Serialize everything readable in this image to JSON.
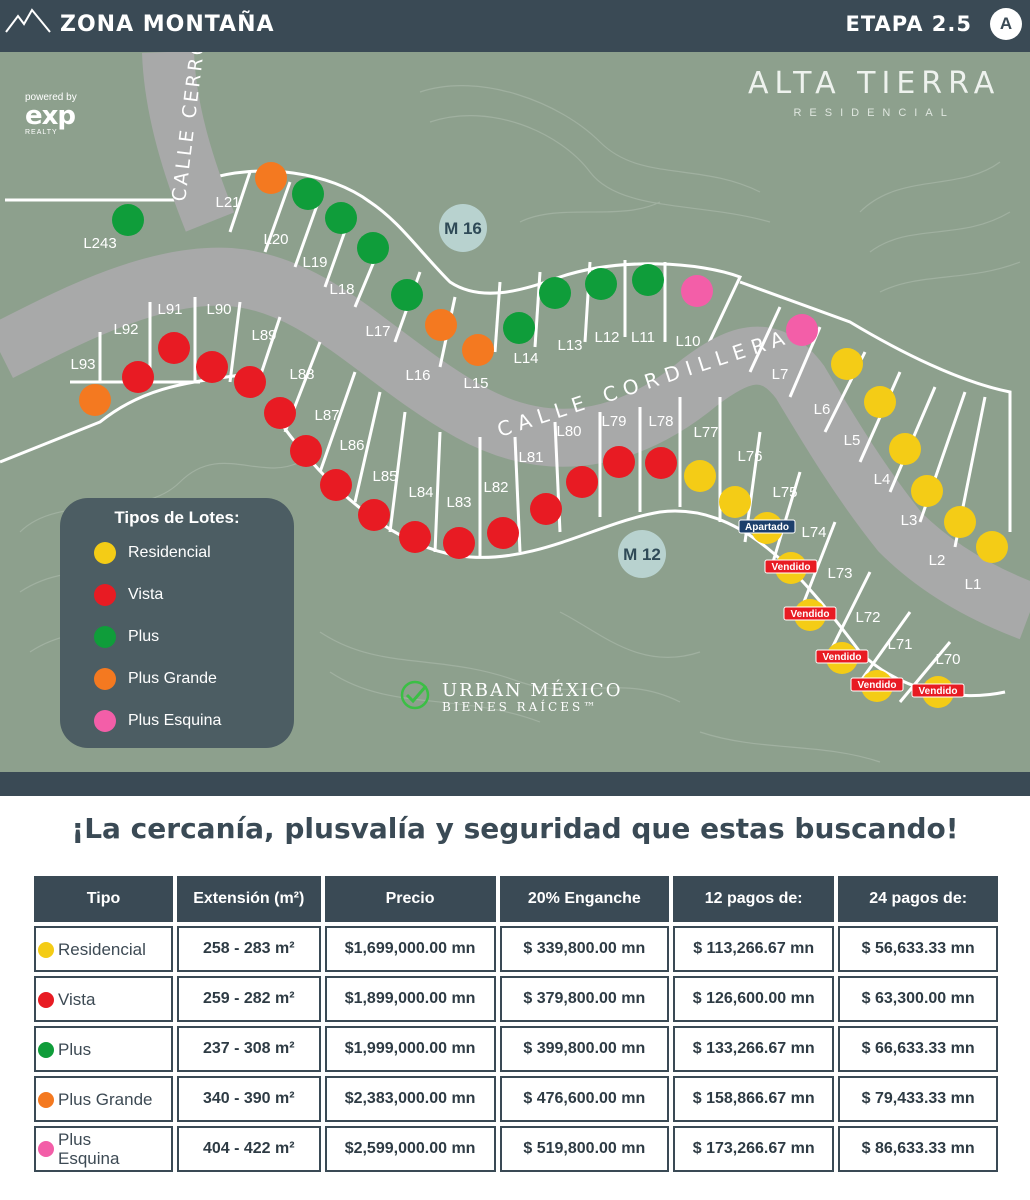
{
  "header": {
    "zone": "ZONA MONTAÑA",
    "stage": "ETAPA 2.5",
    "badge": "A"
  },
  "brand": {
    "powered": "powered by",
    "exp": "exp",
    "realty": "REALTY",
    "name": "ALTA TIERRA",
    "sub": "RESIDENCIAL"
  },
  "colors": {
    "Residencial": "#f4cc16",
    "Vista": "#e81b23",
    "Plus": "#0f9d3a",
    "PlusGrande": "#f47920",
    "PlusEsquina": "#f35ea8",
    "dark": "#3a4a55",
    "map": "#8da08d",
    "road": "#a8a9a9"
  },
  "streets": {
    "cerro": "CALLE CERRO",
    "cordillera": "CALLE CORDILLERA"
  },
  "blocks": [
    "M 16",
    "M 12"
  ],
  "lots": [
    {
      "id": "L243",
      "type": "Plus"
    },
    {
      "id": "L21",
      "type": "PlusGrande"
    },
    {
      "id": "L20",
      "type": "Plus"
    },
    {
      "id": "L19",
      "type": "Plus"
    },
    {
      "id": "L18",
      "type": "Plus"
    },
    {
      "id": "L17",
      "type": "Plus"
    },
    {
      "id": "L16",
      "type": "PlusGrande"
    },
    {
      "id": "L15",
      "type": "PlusGrande"
    },
    {
      "id": "L14",
      "type": "Plus"
    },
    {
      "id": "L13",
      "type": "Plus"
    },
    {
      "id": "L12",
      "type": "Plus"
    },
    {
      "id": "L11",
      "type": "Plus"
    },
    {
      "id": "L10",
      "type": "PlusEsquina"
    },
    {
      "id": "L7",
      "type": "PlusEsquina"
    },
    {
      "id": "L6",
      "type": "Residencial"
    },
    {
      "id": "L5",
      "type": "Residencial"
    },
    {
      "id": "L4",
      "type": "Residencial"
    },
    {
      "id": "L3",
      "type": "Residencial"
    },
    {
      "id": "L2",
      "type": "Residencial"
    },
    {
      "id": "L1",
      "type": "Residencial"
    },
    {
      "id": "L93",
      "type": "PlusGrande"
    },
    {
      "id": "L92",
      "type": "Vista"
    },
    {
      "id": "L91",
      "type": "Vista"
    },
    {
      "id": "L90",
      "type": "Vista"
    },
    {
      "id": "L89",
      "type": "Vista"
    },
    {
      "id": "L88",
      "type": "Vista"
    },
    {
      "id": "L87",
      "type": "Vista"
    },
    {
      "id": "L86",
      "type": "Vista"
    },
    {
      "id": "L85",
      "type": "Vista"
    },
    {
      "id": "L84",
      "type": "Vista"
    },
    {
      "id": "L83",
      "type": "Vista"
    },
    {
      "id": "L82",
      "type": "Vista"
    },
    {
      "id": "L81",
      "type": "Vista"
    },
    {
      "id": "L80",
      "type": "Vista"
    },
    {
      "id": "L79",
      "type": "Vista"
    },
    {
      "id": "L78",
      "type": "Vista"
    },
    {
      "id": "L77",
      "type": "Residencial"
    },
    {
      "id": "L76",
      "type": "Residencial"
    },
    {
      "id": "L75",
      "type": "Residencial",
      "status": "Apartado"
    },
    {
      "id": "L74",
      "type": "Residencial",
      "status": "Vendido"
    },
    {
      "id": "L73",
      "type": "Residencial",
      "status": "Vendido"
    },
    {
      "id": "L72",
      "type": "Residencial",
      "status": "Vendido"
    },
    {
      "id": "L71",
      "type": "Residencial",
      "status": "Vendido"
    },
    {
      "id": "L70",
      "type": "Residencial",
      "status": "Vendido"
    }
  ],
  "legend": {
    "title": "Tipos de Lotes:",
    "items": [
      {
        "label": "Residencial",
        "color": "#f4cc16"
      },
      {
        "label": "Vista",
        "color": "#e81b23"
      },
      {
        "label": "Plus",
        "color": "#0f9d3a"
      },
      {
        "label": "Plus  Grande",
        "color": "#f47920"
      },
      {
        "label": "Plus Esquina",
        "color": "#f35ea8"
      }
    ]
  },
  "urban": {
    "name": "URBAN MÉXICO",
    "sub": "BIENES RAÍCES™"
  },
  "tagline": "¡La cercanía, plusvalía y seguridad que estas buscando!",
  "table": {
    "headers": [
      "Tipo",
      "Extensión (m²)",
      "Precio",
      "20% Enganche",
      "12 pagos de:",
      "24 pagos de:"
    ],
    "rows": [
      {
        "type": "Residencial",
        "color": "#f4cc16",
        "ext": "258 - 283 m²",
        "price": "$1,699,000.00 mn",
        "down": "$ 339,800.00 mn",
        "p12": "$ 113,266.67 mn",
        "p24": "$ 56,633.33 mn"
      },
      {
        "type": "Vista",
        "color": "#e81b23",
        "ext": "259 - 282 m²",
        "price": "$1,899,000.00 mn",
        "down": "$ 379,800.00 mn",
        "p12": "$ 126,600.00 mn",
        "p24": "$ 63,300.00 mn"
      },
      {
        "type": "Plus",
        "color": "#0f9d3a",
        "ext": "237 - 308 m²",
        "price": "$1,999,000.00 mn",
        "down": "$ 399,800.00 mn",
        "p12": "$ 133,266.67 mn",
        "p24": "$ 66,633.33 mn"
      },
      {
        "type": "Plus Grande",
        "color": "#f47920",
        "ext": "340 - 390 m²",
        "price": "$2,383,000.00 mn",
        "down": "$ 476,600.00 mn",
        "p12": "$ 158,866.67 mn",
        "p24": "$ 79,433.33 mn"
      },
      {
        "type": "Plus Esquina",
        "color": "#f35ea8",
        "ext": "404 - 422 m²",
        "price": "$2,599,000.00 mn",
        "down": "$ 519,800.00 mn",
        "p12": "$ 173,266.67 mn",
        "p24": "$ 86,633.33 mn"
      }
    ]
  }
}
